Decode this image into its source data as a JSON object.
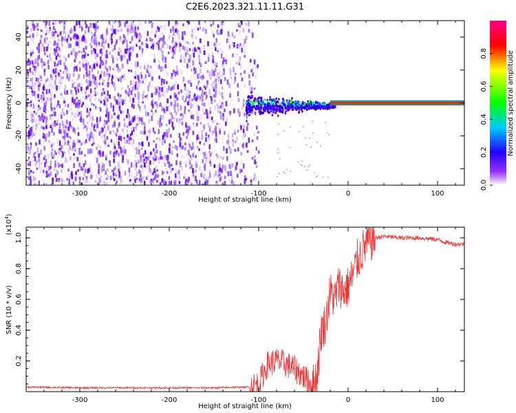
{
  "title": "C2E6.2023.321.11.11.G31",
  "colors": {
    "scatter_purple": "#6a00ff",
    "signal_red": "#e8191b",
    "snr_line": "#ee3333",
    "axis": "#000000"
  },
  "chart_data": [
    {
      "type": "heatmap",
      "xlabel": "Height of straight line (km)",
      "ylabel": "Frequency (Hz)",
      "xlim": [
        -360,
        130
      ],
      "ylim": [
        -50,
        50
      ],
      "x_ticks": [
        -300,
        -200,
        -100,
        0,
        100
      ],
      "y_ticks": [
        -40,
        -20,
        0,
        20,
        40
      ],
      "grid": false,
      "colorbar": {
        "label": "Normalized spectral amplitude",
        "range": [
          0,
          1
        ],
        "ticks": [
          "0.0",
          "0.2",
          "0.4",
          "0.6",
          "0.8"
        ],
        "colormap": [
          "#ffffff",
          "#8800ff",
          "#0000ff",
          "#00ccff",
          "#00ff00",
          "#ffff00",
          "#ff0000",
          "#ff0088"
        ]
      },
      "regions": [
        {
          "x": [
            -360,
            -100
          ],
          "freq_spread": [
            -50,
            50
          ],
          "amplitude": 0.1
        },
        {
          "x": [
            -100,
            -20
          ],
          "freq_spread": [
            -15,
            10
          ],
          "amplitude": 0.3
        },
        {
          "x": [
            -20,
            130
          ],
          "freq_spread": [
            -1,
            1
          ],
          "amplitude": 0.85
        }
      ]
    },
    {
      "type": "line",
      "xlabel": "Height of straight line (km)",
      "ylabel": "SNR (10 * v/v)",
      "yscale_note": "(x10",
      "yscale_exp": "4",
      "yscale_close": ")",
      "xlim": [
        -360,
        130
      ],
      "ylim": [
        0,
        1.07
      ],
      "x_ticks": [
        -300,
        -200,
        -100,
        0,
        100
      ],
      "y_ticks": [
        0.2,
        0.4,
        0.6,
        0.8,
        1.0
      ],
      "y_tick_labels": [
        "0.2",
        "0.4",
        "0.6",
        "0.8",
        "1.0"
      ],
      "series": [
        {
          "x": [
            -360,
            -300,
            -250,
            -200,
            -150,
            -110,
            -100,
            -90,
            -80,
            -70,
            -60,
            -50,
            -40,
            -35,
            -30,
            -25,
            -20,
            -15,
            -10,
            -5,
            0,
            5,
            10,
            20,
            30,
            40,
            60,
            80,
            100,
            110,
            120,
            130
          ],
          "y": [
            0.03,
            0.025,
            0.025,
            0.025,
            0.025,
            0.03,
            0.05,
            0.18,
            0.2,
            0.18,
            0.15,
            0.1,
            0.03,
            0.1,
            0.4,
            0.45,
            0.65,
            0.6,
            0.7,
            0.65,
            0.68,
            0.75,
            0.85,
            0.96,
            1.0,
            1.01,
            1.0,
            1.0,
            0.99,
            0.97,
            0.96,
            0.96
          ]
        }
      ]
    }
  ]
}
